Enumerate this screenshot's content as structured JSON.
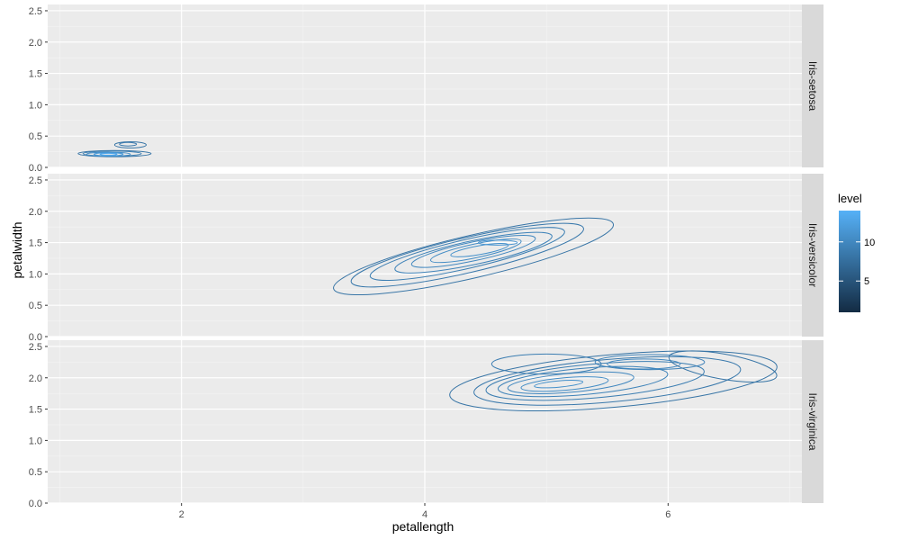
{
  "chart_data": {
    "type": "contour",
    "xlabel": "petallength",
    "ylabel": "petalwidth",
    "xlim": [
      0.9,
      7.1
    ],
    "ylim": [
      0,
      2.6
    ],
    "x_ticks": [
      2,
      4,
      6
    ],
    "x_tick_labels": [
      "2",
      "4",
      "6"
    ],
    "y_ticks": [
      0,
      0.5,
      1,
      1.5,
      2,
      2.5
    ],
    "y_tick_labels": [
      "0.0",
      "0.5",
      "1.0",
      "1.5",
      "2.0",
      "2.5"
    ],
    "grid": true,
    "legend": {
      "title": "level",
      "position": "right",
      "ticks": [
        5,
        10
      ],
      "tick_labels": [
        "5",
        "10"
      ],
      "range": [
        1,
        14
      ],
      "colors": [
        "#132B43",
        "#56B1F7"
      ]
    },
    "panels": [
      {
        "strip": "Iris-setosa",
        "contours": [
          {
            "cx": 1.45,
            "cy": 0.22,
            "rx": 0.3,
            "ry": 0.05,
            "level": 1
          },
          {
            "cx": 1.43,
            "cy": 0.22,
            "rx": 0.24,
            "ry": 0.04,
            "level": 3
          },
          {
            "cx": 1.4,
            "cy": 0.21,
            "rx": 0.18,
            "ry": 0.032,
            "level": 6
          },
          {
            "cx": 1.4,
            "cy": 0.21,
            "rx": 0.12,
            "ry": 0.024,
            "level": 9
          },
          {
            "cx": 1.4,
            "cy": 0.21,
            "rx": 0.07,
            "ry": 0.015,
            "level": 12
          },
          {
            "cx": 1.58,
            "cy": 0.36,
            "rx": 0.13,
            "ry": 0.05,
            "level": 1
          },
          {
            "cx": 1.56,
            "cy": 0.37,
            "rx": 0.07,
            "ry": 0.028,
            "level": 2
          }
        ]
      },
      {
        "strip": "Iris-versicolor",
        "contours": [
          {
            "cx": 4.4,
            "cy": 1.28,
            "rx": 1.18,
            "ry": 0.34,
            "rot": 13,
            "level": 1
          },
          {
            "cx": 4.35,
            "cy": 1.3,
            "rx": 0.98,
            "ry": 0.28,
            "rot": 13,
            "level": 2
          },
          {
            "cx": 4.35,
            "cy": 1.32,
            "rx": 0.82,
            "ry": 0.23,
            "rot": 13,
            "level": 3
          },
          {
            "cx": 4.4,
            "cy": 1.34,
            "rx": 0.66,
            "ry": 0.19,
            "rot": 12,
            "level": 4
          },
          {
            "cx": 4.4,
            "cy": 1.36,
            "rx": 0.52,
            "ry": 0.15,
            "rot": 12,
            "level": 5
          },
          {
            "cx": 4.42,
            "cy": 1.37,
            "rx": 0.38,
            "ry": 0.11,
            "rot": 12,
            "level": 6
          },
          {
            "cx": 4.45,
            "cy": 1.38,
            "rx": 0.24,
            "ry": 0.07,
            "rot": 10,
            "level": 7
          },
          {
            "cx": 4.6,
            "cy": 1.5,
            "rx": 0.16,
            "ry": 0.04,
            "rot": 0,
            "level": 8
          }
        ]
      },
      {
        "strip": "Iris-virginica",
        "contours": [
          {
            "cx": 5.55,
            "cy": 1.95,
            "rx": 1.35,
            "ry": 0.42,
            "rot": 5,
            "level": 1
          },
          {
            "cx": 5.5,
            "cy": 1.95,
            "rx": 1.1,
            "ry": 0.34,
            "rot": 5,
            "level": 2
          },
          {
            "cx": 5.4,
            "cy": 1.95,
            "rx": 0.9,
            "ry": 0.27,
            "rot": 5,
            "level": 3
          },
          {
            "cx": 5.3,
            "cy": 1.94,
            "rx": 0.7,
            "ry": 0.21,
            "rot": 5,
            "level": 4
          },
          {
            "cx": 5.2,
            "cy": 1.92,
            "rx": 0.52,
            "ry": 0.15,
            "rot": 5,
            "level": 5
          },
          {
            "cx": 5.15,
            "cy": 1.9,
            "rx": 0.36,
            "ry": 0.1,
            "rot": 5,
            "level": 6
          },
          {
            "cx": 5.1,
            "cy": 1.9,
            "rx": 0.2,
            "ry": 0.05,
            "rot": 5,
            "level": 7
          },
          {
            "cx": 5.85,
            "cy": 2.25,
            "rx": 0.45,
            "ry": 0.12,
            "rot": 0,
            "level": 4
          },
          {
            "cx": 5.8,
            "cy": 2.22,
            "rx": 0.3,
            "ry": 0.08,
            "rot": 0,
            "level": 5
          },
          {
            "cx": 5.0,
            "cy": 2.22,
            "rx": 0.45,
            "ry": 0.16,
            "rot": 0,
            "level": 3
          },
          {
            "cx": 6.45,
            "cy": 2.18,
            "rx": 0.45,
            "ry": 0.2,
            "rot": -10,
            "level": 1
          }
        ]
      }
    ]
  }
}
